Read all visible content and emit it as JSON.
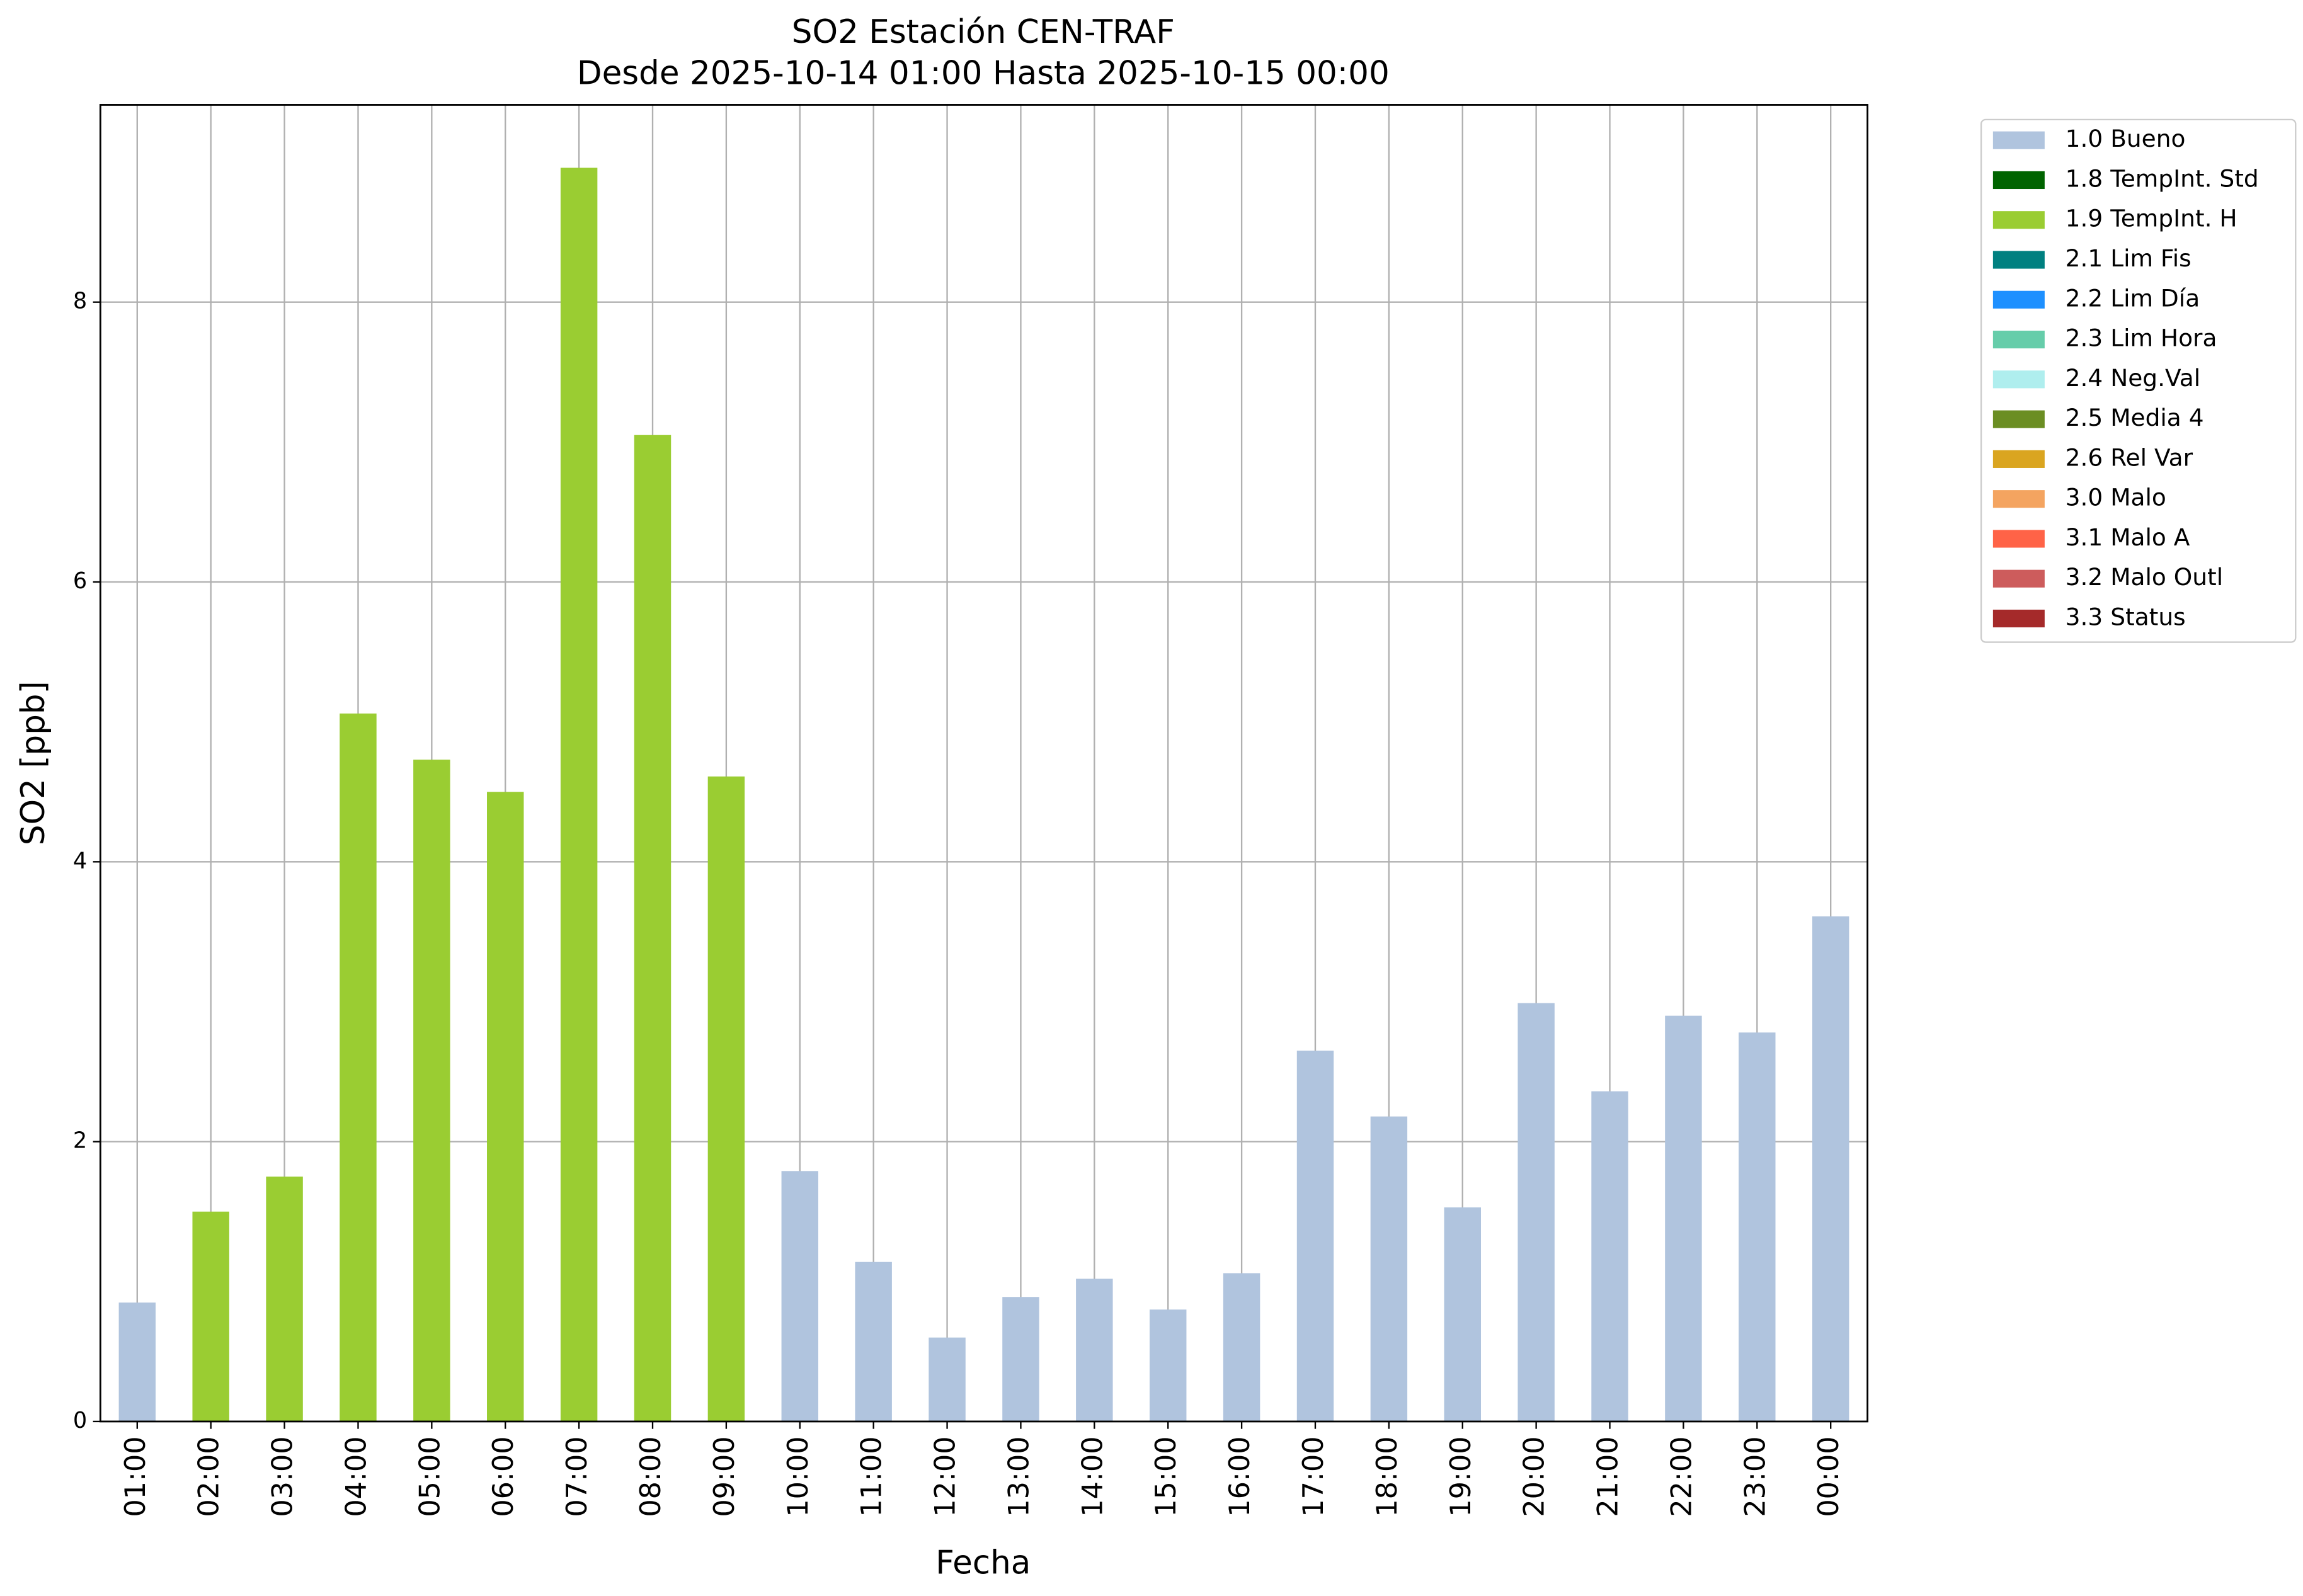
{
  "chart_data": {
    "type": "stacked_bar",
    "title": "SO2 Estación CEN-TRAF",
    "subtitle": "Desde 2025-10-14 01:00 Hasta 2025-10-15 00:00",
    "x_label": "Fecha",
    "y_label": "SO2 [ppb]",
    "categories": [
      "01:00",
      "02:00",
      "03:00",
      "04:00",
      "05:00",
      "06:00",
      "07:00",
      "08:00",
      "09:00",
      "10:00",
      "11:00",
      "12:00",
      "13:00",
      "14:00",
      "15:00",
      "16:00",
      "17:00",
      "18:00",
      "19:00",
      "20:00",
      "21:00",
      "22:00",
      "23:00",
      "00:00"
    ],
    "series": [
      {
        "name": "1.0 Bueno",
        "color": "#b0c4de",
        "values": [
          0.85,
          null,
          null,
          null,
          null,
          null,
          null,
          null,
          null,
          1.79,
          1.14,
          0.6,
          0.89,
          1.02,
          0.8,
          1.06,
          2.65,
          2.18,
          1.53,
          2.99,
          2.36,
          2.9,
          2.78,
          3.61
        ]
      },
      {
        "name": "1.8 TempInt. Std",
        "color": "#006400",
        "values": [
          null,
          null,
          null,
          null,
          null,
          null,
          null,
          null,
          null,
          null,
          null,
          null,
          null,
          null,
          null,
          null,
          null,
          null,
          null,
          null,
          null,
          null,
          null,
          null
        ]
      },
      {
        "name": "1.9 TempInt. H",
        "color": "#9acd32",
        "values": [
          null,
          1.5,
          1.75,
          5.06,
          4.73,
          4.5,
          8.96,
          7.05,
          4.61,
          null,
          null,
          null,
          null,
          null,
          null,
          null,
          null,
          null,
          null,
          null,
          null,
          null,
          null,
          null
        ]
      },
      {
        "name": "2.1 Lim Fis",
        "color": "#008080",
        "values": [
          null,
          null,
          null,
          null,
          null,
          null,
          null,
          null,
          null,
          null,
          null,
          null,
          null,
          null,
          null,
          null,
          null,
          null,
          null,
          null,
          null,
          null,
          null,
          null
        ]
      },
      {
        "name": "2.2 Lim Día",
        "color": "#1e90ff",
        "values": [
          null,
          null,
          null,
          null,
          null,
          null,
          null,
          null,
          null,
          null,
          null,
          null,
          null,
          null,
          null,
          null,
          null,
          null,
          null,
          null,
          null,
          null,
          null,
          null
        ]
      },
      {
        "name": "2.3 Lim Hora",
        "color": "#66cdaa",
        "values": [
          null,
          null,
          null,
          null,
          null,
          null,
          null,
          null,
          null,
          null,
          null,
          null,
          null,
          null,
          null,
          null,
          null,
          null,
          null,
          null,
          null,
          null,
          null,
          null
        ]
      },
      {
        "name": "2.4 Neg.Val",
        "color": "#afeeee",
        "values": [
          null,
          null,
          null,
          null,
          null,
          null,
          null,
          null,
          null,
          null,
          null,
          null,
          null,
          null,
          null,
          null,
          null,
          null,
          null,
          null,
          null,
          null,
          null,
          null
        ]
      },
      {
        "name": "2.5 Media 4",
        "color": "#6b8e23",
        "values": [
          null,
          null,
          null,
          null,
          null,
          null,
          null,
          null,
          null,
          null,
          null,
          null,
          null,
          null,
          null,
          null,
          null,
          null,
          null,
          null,
          null,
          null,
          null,
          null
        ]
      },
      {
        "name": "2.6 Rel Var",
        "color": "#daa520",
        "values": [
          null,
          null,
          null,
          null,
          null,
          null,
          null,
          null,
          null,
          null,
          null,
          null,
          null,
          null,
          null,
          null,
          null,
          null,
          null,
          null,
          null,
          null,
          null,
          null
        ]
      },
      {
        "name": "3.0 Malo",
        "color": "#f4a460",
        "values": [
          null,
          null,
          null,
          null,
          null,
          null,
          null,
          null,
          null,
          null,
          null,
          null,
          null,
          null,
          null,
          null,
          null,
          null,
          null,
          null,
          null,
          null,
          null,
          null
        ]
      },
      {
        "name": "3.1 Malo A",
        "color": "#ff6347",
        "values": [
          null,
          null,
          null,
          null,
          null,
          null,
          null,
          null,
          null,
          null,
          null,
          null,
          null,
          null,
          null,
          null,
          null,
          null,
          null,
          null,
          null,
          null,
          null,
          null
        ]
      },
      {
        "name": "3.2 Malo Outl",
        "color": "#cd5c5c",
        "values": [
          null,
          null,
          null,
          null,
          null,
          null,
          null,
          null,
          null,
          null,
          null,
          null,
          null,
          null,
          null,
          null,
          null,
          null,
          null,
          null,
          null,
          null,
          null,
          null
        ]
      },
      {
        "name": "3.3 Status",
        "color": "#a52a2a",
        "values": [
          null,
          null,
          null,
          null,
          null,
          null,
          null,
          null,
          null,
          null,
          null,
          null,
          null,
          null,
          null,
          null,
          null,
          null,
          null,
          null,
          null,
          null,
          null,
          null
        ]
      }
    ],
    "ylim": [
      0,
      9.41
    ],
    "yticks": [
      0,
      2,
      4,
      6,
      8
    ],
    "grid": true,
    "legend": "outside-right"
  }
}
